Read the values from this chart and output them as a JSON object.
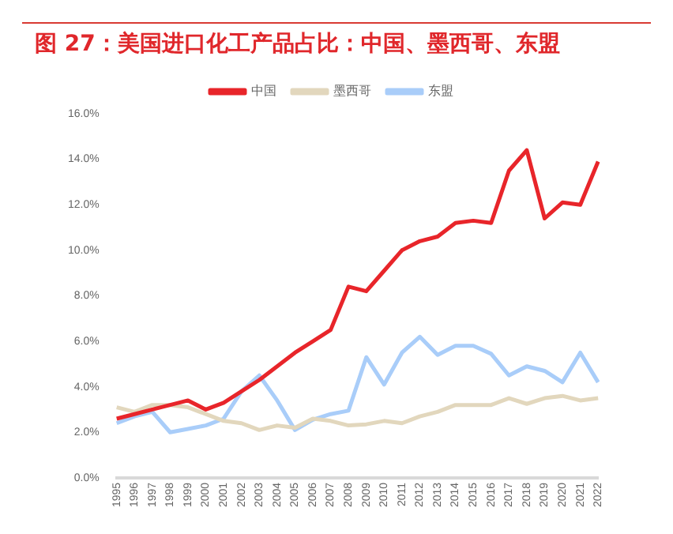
{
  "chart_data": {
    "type": "line",
    "title": "图 27：美国进口化工产品占比：中国、墨西哥、东盟",
    "categories": [
      "1995",
      "1996",
      "1997",
      "1998",
      "1999",
      "2000",
      "2001",
      "2002",
      "2003",
      "2004",
      "2005",
      "2006",
      "2007",
      "2008",
      "2009",
      "2010",
      "2011",
      "2012",
      "2013",
      "2014",
      "2015",
      "2016",
      "2017",
      "2018",
      "2019",
      "2020",
      "2021",
      "2022"
    ],
    "series": [
      {
        "name": "中国",
        "color": "#e8252a",
        "values": [
          2.6,
          2.8,
          3.0,
          3.2,
          3.4,
          3.0,
          3.3,
          3.8,
          4.3,
          4.9,
          5.5,
          6.0,
          6.5,
          8.4,
          8.2,
          9.1,
          10.0,
          10.4,
          10.6,
          11.2,
          11.3,
          11.2,
          13.5,
          14.4,
          11.4,
          12.1,
          12.0,
          13.9
        ]
      },
      {
        "name": "墨西哥",
        "color": "#e2d7bd",
        "values": [
          3.1,
          2.9,
          3.2,
          3.2,
          3.1,
          2.8,
          2.5,
          2.4,
          2.1,
          2.3,
          2.2,
          2.6,
          2.5,
          2.3,
          2.35,
          2.5,
          2.4,
          2.7,
          2.9,
          3.2,
          3.2,
          3.2,
          3.5,
          3.25,
          3.5,
          3.6,
          3.4,
          3.5
        ]
      },
      {
        "name": "东盟",
        "color": "#a9cdf9",
        "values": [
          2.4,
          2.7,
          2.9,
          2.0,
          2.15,
          2.3,
          2.6,
          3.8,
          4.5,
          3.4,
          2.1,
          2.55,
          2.8,
          2.95,
          5.3,
          4.1,
          5.5,
          6.2,
          5.4,
          5.8,
          5.8,
          5.45,
          4.5,
          4.9,
          4.7,
          4.2,
          5.5,
          4.2
        ]
      }
    ],
    "ylim": [
      0,
      16
    ],
    "yticks": [
      {
        "value": 0,
        "label": "0.0%"
      },
      {
        "value": 2,
        "label": "2.0%"
      },
      {
        "value": 4,
        "label": "4.0%"
      },
      {
        "value": 6,
        "label": "6.0%"
      },
      {
        "value": 8,
        "label": "8.0%"
      },
      {
        "value": 10,
        "label": "10.0%"
      },
      {
        "value": 12,
        "label": "12.0%"
      },
      {
        "value": 14,
        "label": "14.0%"
      },
      {
        "value": 16,
        "label": "16.0%"
      }
    ],
    "grid": false,
    "legend": "top",
    "marker": "none",
    "line_style": "solid"
  }
}
